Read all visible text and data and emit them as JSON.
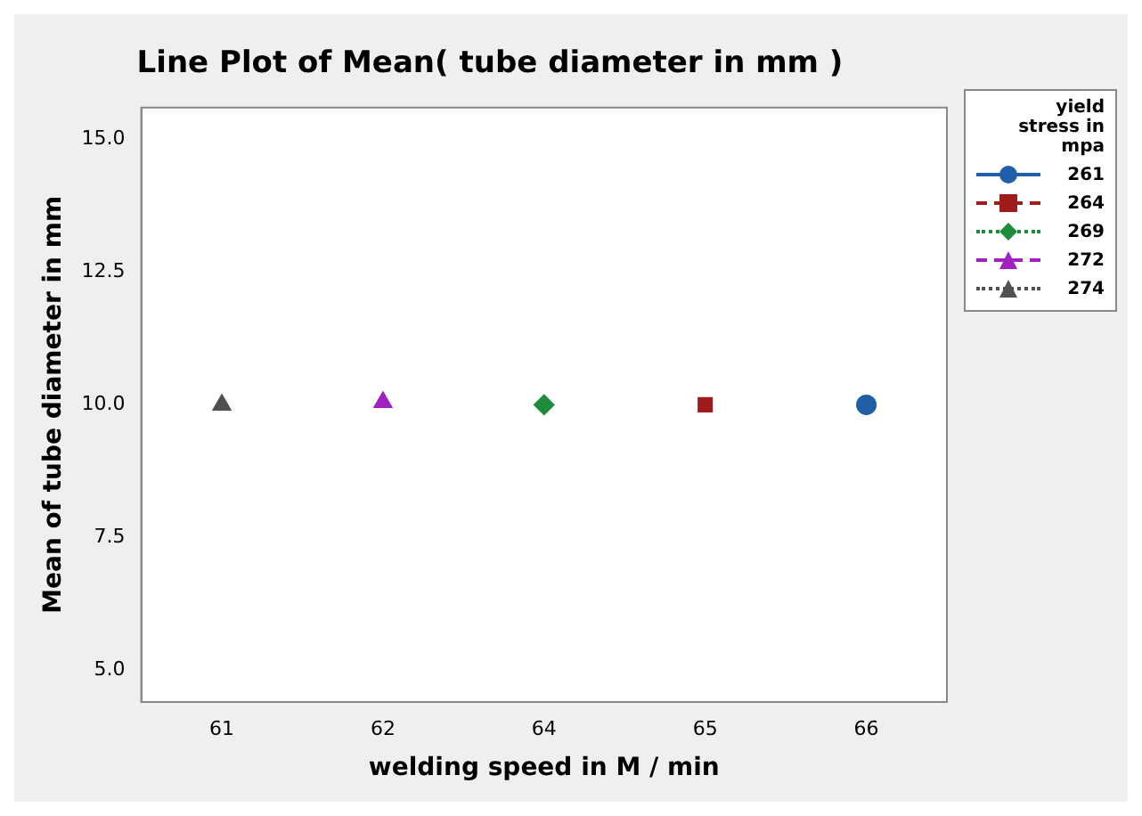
{
  "chart_data": {
    "type": "line",
    "title": "Line Plot of Mean( tube diameter in mm )",
    "xlabel": "welding speed in M / min",
    "ylabel": "Mean of tube diameter in mm",
    "legend_title": "yield stress in mpa",
    "legend": "right",
    "grid": false,
    "categories": [
      "61",
      "62",
      "64",
      "65",
      "66"
    ],
    "ylim": [
      4.4,
      15.6
    ],
    "yticks": [
      {
        "value": 5,
        "label": "5.0"
      },
      {
        "value": 7.5,
        "label": "7.5"
      },
      {
        "value": 10,
        "label": "10.0"
      },
      {
        "value": 12.5,
        "label": "12.5"
      },
      {
        "value": 15,
        "label": "15.0"
      }
    ],
    "series": [
      {
        "name": "261",
        "color": "#1f5fa8",
        "marker": "circle",
        "line_style": "solid",
        "values": [
          null,
          null,
          null,
          null,
          10.0
        ]
      },
      {
        "name": "264",
        "color": "#a01c1c",
        "marker": "square",
        "line_style": "dashed",
        "values": [
          null,
          null,
          null,
          10.0,
          null
        ]
      },
      {
        "name": "269",
        "color": "#1e8c3a",
        "marker": "diamond",
        "line_style": "dotted",
        "values": [
          null,
          null,
          10.0,
          null,
          null
        ]
      },
      {
        "name": "272",
        "color": "#a020c0",
        "marker": "triangle",
        "line_style": "dashed",
        "values": [
          null,
          10.05,
          null,
          null,
          null
        ]
      },
      {
        "name": "274",
        "color": "#505050",
        "marker": "triangle",
        "line_style": "dotted",
        "values": [
          10.0,
          null,
          null,
          null,
          null
        ]
      }
    ]
  }
}
